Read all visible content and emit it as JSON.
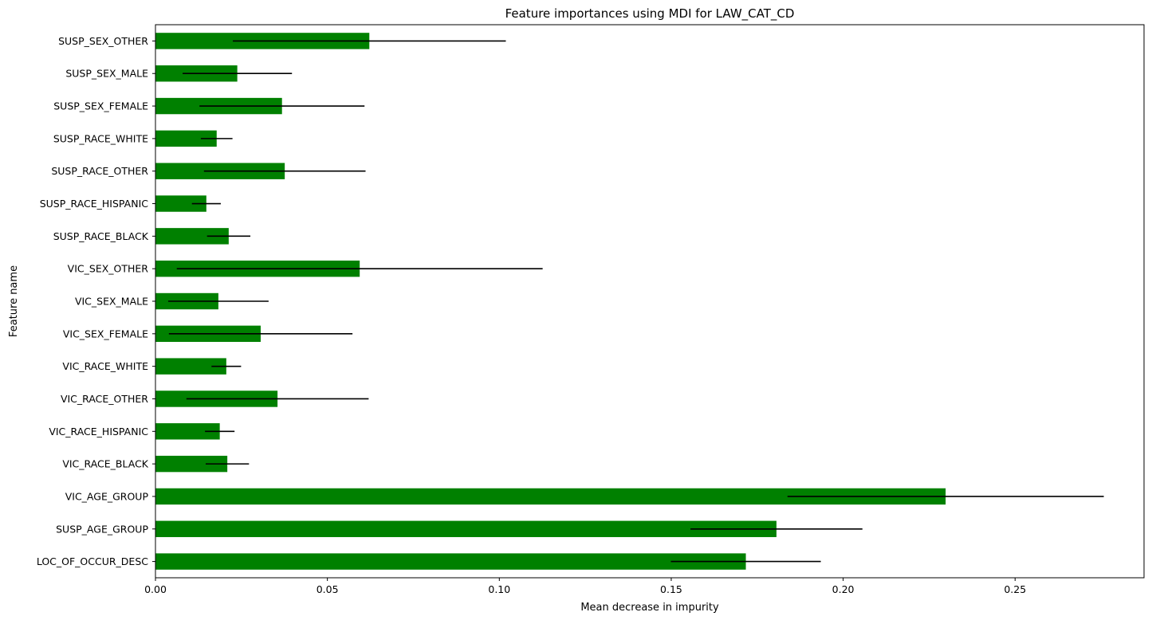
{
  "chart_data": {
    "type": "bar",
    "orientation": "horizontal",
    "title": "Feature importances using MDI for LAW_CAT_CD",
    "xlabel": "Mean decrease in impurity",
    "ylabel": "Feature name",
    "xlim": [
      0,
      0.2875
    ],
    "xticks": [
      0,
      0.05,
      0.1,
      0.15,
      0.2,
      0.25
    ],
    "xtick_labels": [
      "0.00",
      "0.05",
      "0.10",
      "0.15",
      "0.20",
      "0.25"
    ],
    "grid": false,
    "bar_color": "#008000",
    "error_color": "#000000",
    "categories": [
      "SUSP_SEX_OTHER",
      "SUSP_SEX_MALE",
      "SUSP_SEX_FEMALE",
      "SUSP_RACE_WHITE",
      "SUSP_RACE_OTHER",
      "SUSP_RACE_HISPANIC",
      "SUSP_RACE_BLACK",
      "VIC_SEX_OTHER",
      "VIC_SEX_MALE",
      "VIC_SEX_FEMALE",
      "VIC_RACE_WHITE",
      "VIC_RACE_OTHER",
      "VIC_RACE_HISPANIC",
      "VIC_RACE_BLACK",
      "VIC_AGE_GROUP",
      "SUSP_AGE_GROUP",
      "LOC_OF_OCCUR_DESC"
    ],
    "values": [
      0.0622,
      0.0238,
      0.0368,
      0.0178,
      0.0376,
      0.0148,
      0.0213,
      0.0594,
      0.0183,
      0.0306,
      0.0206,
      0.0355,
      0.0187,
      0.0209,
      0.2298,
      0.1806,
      0.1717
    ],
    "errors": [
      0.0397,
      0.0159,
      0.024,
      0.0046,
      0.0235,
      0.0042,
      0.0063,
      0.0532,
      0.0146,
      0.0267,
      0.0043,
      0.0265,
      0.0043,
      0.0063,
      0.046,
      0.025,
      0.0218
    ]
  }
}
